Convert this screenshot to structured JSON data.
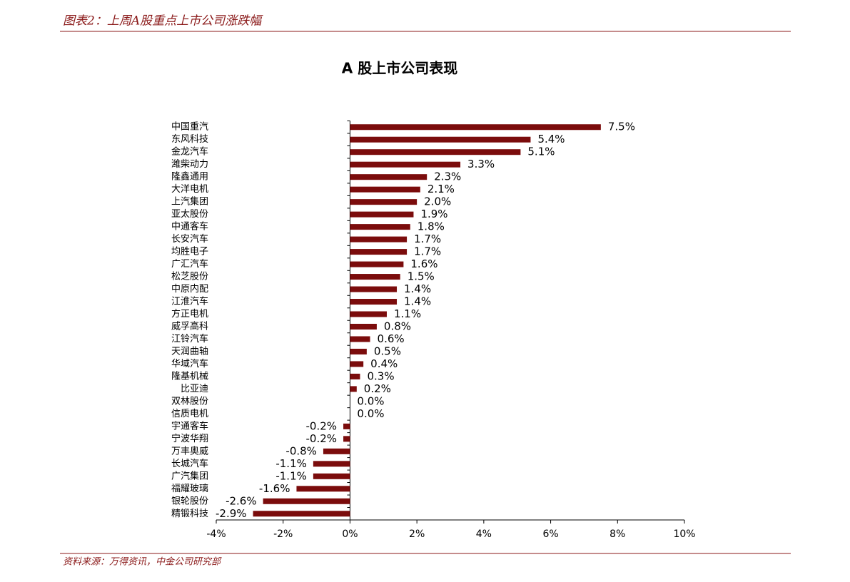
{
  "header": "图表2：上周A股重点上市公司涨跌幅",
  "source": "资料来源：万得资讯，中金公司研究部",
  "chart_data": {
    "type": "barh",
    "title": "A 股上市公司表现",
    "categories": [
      "中国重汽",
      "东风科技",
      "金龙汽车",
      "潍柴动力",
      "隆鑫通用",
      "大洋电机",
      "上汽集团",
      "亚太股份",
      "中通客车",
      "长安汽车",
      "均胜电子",
      "广汇汽车",
      "松芝股份",
      "中原内配",
      "江淮汽车",
      "方正电机",
      "威孚高科",
      "江铃汽车",
      "天润曲轴",
      "华域汽车",
      "隆基机械",
      "比亚迪",
      "双林股份",
      "信质电机",
      "宇通客车",
      "宁波华翔",
      "万丰奥威",
      "长城汽车",
      "广汽集团",
      "福耀玻璃",
      "银轮股份",
      "精锻科技"
    ],
    "values": [
      7.5,
      5.4,
      5.1,
      3.3,
      2.3,
      2.1,
      2.0,
      1.9,
      1.8,
      1.7,
      1.7,
      1.6,
      1.5,
      1.4,
      1.4,
      1.1,
      0.8,
      0.6,
      0.5,
      0.4,
      0.3,
      0.2,
      0.0,
      0.0,
      -0.2,
      -0.2,
      -0.8,
      -1.1,
      -1.1,
      -1.6,
      -2.6,
      -2.9
    ],
    "value_labels": [
      "7.5%",
      "5.4%",
      "5.1%",
      "3.3%",
      "2.3%",
      "2.1%",
      "2.0%",
      "1.9%",
      "1.8%",
      "1.7%",
      "1.7%",
      "1.6%",
      "1.5%",
      "1.4%",
      "1.4%",
      "1.1%",
      "0.8%",
      "0.6%",
      "0.5%",
      "0.4%",
      "0.3%",
      "0.2%",
      "0.0%",
      "0.0%",
      "-0.2%",
      "-0.2%",
      "-0.8%",
      "-1.1%",
      "-1.1%",
      "-1.6%",
      "-2.6%",
      "-2.9%"
    ],
    "color": "#7b0c0c",
    "xlim": [
      -4,
      10
    ],
    "xticks": [
      {
        "value": -4,
        "label": "-4%"
      },
      {
        "value": -2,
        "label": "-2%"
      },
      {
        "value": 0,
        "label": "0%"
      },
      {
        "value": 2,
        "label": "2%"
      },
      {
        "value": 4,
        "label": "4%"
      },
      {
        "value": 6,
        "label": "6%"
      },
      {
        "value": 8,
        "label": "8%"
      },
      {
        "value": 10,
        "label": "10%"
      }
    ],
    "grid": false
  }
}
